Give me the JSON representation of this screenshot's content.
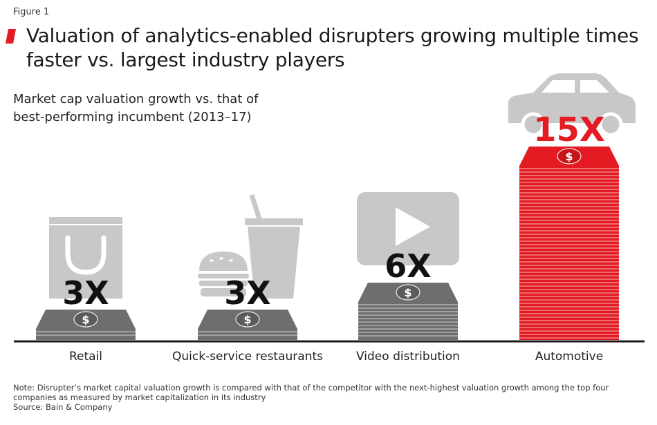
{
  "figure_label": "Figure 1",
  "title": "Valuation of analytics-enabled disrupters growing multiple times faster vs. largest industry players",
  "subtitle": "Market cap valuation growth vs. that of best-performing incumbent (2013–17)",
  "note": "Note: Disrupter’s market capital valuation growth is compared with that of the competitor with the next-highest valuation growth among the top four companies as measured by market capitalization in its industry",
  "source": "Source: Bain & Company",
  "colors": {
    "accent": "#e31b23",
    "incumbent_gray": "#6e6e6e",
    "icon_gray": "#c8c8c8",
    "label_black": "#111111"
  },
  "chart_data": {
    "type": "bar",
    "title": "Valuation of analytics-enabled disrupters growing multiple times faster vs. largest industry players",
    "subtitle": "Market cap valuation growth vs. that of best-performing incumbent (2013–17)",
    "xlabel": "",
    "ylabel": "",
    "categories": [
      "Retail",
      "Quick-service restaurants",
      "Video distribution",
      "Automotive"
    ],
    "values": [
      3,
      3,
      6,
      15
    ],
    "value_labels": [
      "3X",
      "3X",
      "6X",
      "15X"
    ],
    "icons": [
      "shopping-bag-icon",
      "burger-and-drink-icon",
      "video-play-icon",
      "car-icon"
    ],
    "highlight_index": 3,
    "ylim": [
      0,
      15
    ],
    "grid": false,
    "legend": "none"
  }
}
